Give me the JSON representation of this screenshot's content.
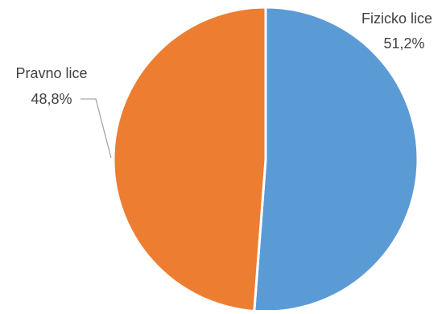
{
  "chart_data": {
    "type": "pie",
    "title": "",
    "categories": [
      "Fizicko lice",
      "Pravno lice"
    ],
    "values": [
      51.2,
      48.8
    ],
    "value_labels": [
      "51,2%",
      "48,8%"
    ],
    "colors": [
      "#5B9BD5",
      "#ED7D31"
    ],
    "slice_border_color": "#ffffff",
    "leader_line_color": "#a6a6a6",
    "legend": "none",
    "data_labels": "outside with category name and percentage"
  }
}
